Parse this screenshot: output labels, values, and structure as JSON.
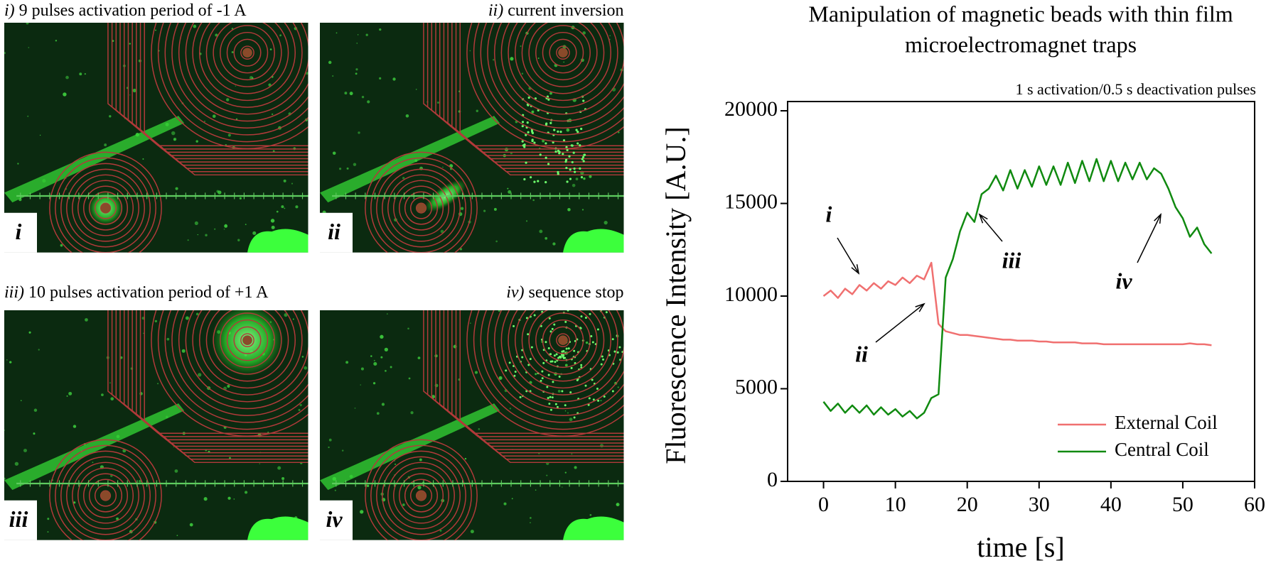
{
  "panels": [
    {
      "numeral": "i)",
      "caption": "9 pulses activation period of -1 A",
      "label": "i"
    },
    {
      "numeral": "ii)",
      "caption": "current inversion",
      "label": "ii"
    },
    {
      "numeral": "iii)",
      "caption": "10 pulses activation period of +1 A",
      "label": "iii"
    },
    {
      "numeral": "iv)",
      "caption": "sequence stop",
      "label": "iv"
    }
  ],
  "chart_data": {
    "type": "line",
    "title": [
      "Manipulation of magnetic beads with thin film",
      "microelectromagnet traps"
    ],
    "subtitle": "1 s activation/0.5  s deactivation pulses",
    "x_label": "time [s]",
    "y_label": "Fluorescence Intensity [A.U.]",
    "x": [
      0,
      1,
      2,
      3,
      4,
      5,
      6,
      7,
      8,
      9,
      10,
      11,
      12,
      13,
      14,
      15,
      16,
      17,
      18,
      19,
      20,
      21,
      22,
      23,
      24,
      25,
      26,
      27,
      28,
      29,
      30,
      31,
      32,
      33,
      34,
      35,
      36,
      37,
      38,
      39,
      40,
      41,
      42,
      43,
      44,
      45,
      46,
      47,
      48,
      49,
      50,
      51,
      52,
      53,
      54
    ],
    "series": [
      {
        "name": "External Coil",
        "color": "#f07070",
        "values": [
          10000,
          10300,
          9900,
          10400,
          10100,
          10600,
          10300,
          10700,
          10400,
          10800,
          10600,
          11000,
          10700,
          11100,
          10900,
          11800,
          8500,
          8100,
          8000,
          7900,
          7900,
          7850,
          7800,
          7750,
          7700,
          7650,
          7650,
          7600,
          7600,
          7600,
          7550,
          7550,
          7500,
          7500,
          7500,
          7500,
          7450,
          7450,
          7450,
          7400,
          7400,
          7400,
          7400,
          7400,
          7400,
          7400,
          7400,
          7400,
          7400,
          7400,
          7400,
          7450,
          7400,
          7400,
          7350
        ]
      },
      {
        "name": "Central Coil",
        "color": "#108a10",
        "values": [
          4300,
          3800,
          4200,
          3700,
          4100,
          3700,
          4100,
          3600,
          4000,
          3600,
          3900,
          3500,
          3800,
          3400,
          3700,
          4500,
          4700,
          11000,
          12000,
          13500,
          14500,
          14000,
          15500,
          15800,
          16500,
          15700,
          16800,
          15800,
          16800,
          15900,
          17000,
          16000,
          17000,
          16000,
          17200,
          16100,
          17300,
          16200,
          17400,
          16200,
          17300,
          16200,
          17200,
          16300,
          17200,
          16300,
          16900,
          16600,
          15800,
          14800,
          14200,
          13200,
          13700,
          12800,
          12300
        ]
      }
    ],
    "xlim": [
      -5,
      60
    ],
    "ylim": [
      0,
      20500
    ],
    "xticks": [
      0,
      10,
      20,
      30,
      40,
      50,
      60
    ],
    "yticks": [
      0,
      5000,
      10000,
      15000,
      20000
    ],
    "legend": "lower right",
    "annotations": [
      "i",
      "ii",
      "iii",
      "iv"
    ]
  }
}
